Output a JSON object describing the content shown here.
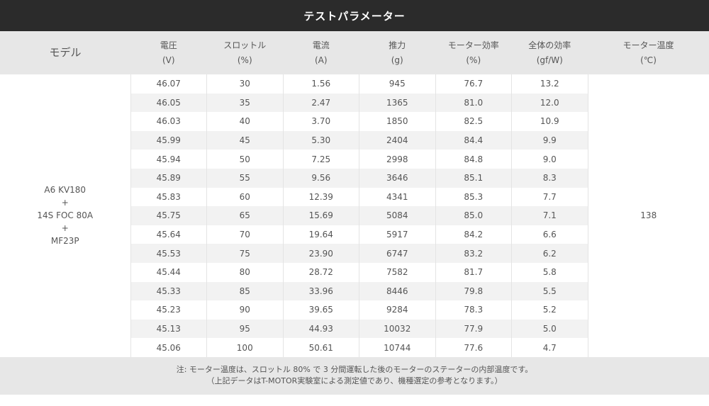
{
  "title": "テストパラメーター",
  "header": {
    "model": "モデル",
    "columns": [
      {
        "name": "電圧",
        "unit": "(V)"
      },
      {
        "name": "スロットル",
        "unit": "(%)"
      },
      {
        "name": "電流",
        "unit": "(A)"
      },
      {
        "name": "推力",
        "unit": "(g)"
      },
      {
        "name": "モーター効率",
        "unit": "(%)"
      },
      {
        "name": "全体の効率",
        "unit": "(gf/W)"
      }
    ],
    "temp_name": "モーター温度",
    "temp_unit": "(℃)"
  },
  "model": {
    "line1": "A6 KV180",
    "plus1": "+",
    "line2": "14S FOC 80A",
    "plus2": "+",
    "line3": "MF23P"
  },
  "temperature": "138",
  "rows": [
    [
      "46.07",
      "30",
      "1.56",
      "945",
      "76.7",
      "13.2"
    ],
    [
      "46.05",
      "35",
      "2.47",
      "1365",
      "81.0",
      "12.0"
    ],
    [
      "46.03",
      "40",
      "3.70",
      "1850",
      "82.5",
      "10.9"
    ],
    [
      "45.99",
      "45",
      "5.30",
      "2404",
      "84.4",
      "9.9"
    ],
    [
      "45.94",
      "50",
      "7.25",
      "2998",
      "84.8",
      "9.0"
    ],
    [
      "45.89",
      "55",
      "9.56",
      "3646",
      "85.1",
      "8.3"
    ],
    [
      "45.83",
      "60",
      "12.39",
      "4341",
      "85.3",
      "7.7"
    ],
    [
      "45.75",
      "65",
      "15.69",
      "5084",
      "85.0",
      "7.1"
    ],
    [
      "45.64",
      "70",
      "19.64",
      "5917",
      "84.2",
      "6.6"
    ],
    [
      "45.53",
      "75",
      "23.90",
      "6747",
      "83.2",
      "6.2"
    ],
    [
      "45.44",
      "80",
      "28.72",
      "7582",
      "81.7",
      "5.8"
    ],
    [
      "45.33",
      "85",
      "33.96",
      "8446",
      "79.8",
      "5.5"
    ],
    [
      "45.23",
      "90",
      "39.65",
      "9284",
      "78.3",
      "5.2"
    ],
    [
      "45.13",
      "95",
      "44.93",
      "10032",
      "77.9",
      "5.0"
    ],
    [
      "45.06",
      "100",
      "50.61",
      "10744",
      "77.6",
      "4.7"
    ]
  ],
  "note": {
    "line1": "注: モーター温度は、スロットル 80% で 3 分間運転した後のモーターのステーターの内部温度です。",
    "line2": "（上記データはT-MOTOR実験室による測定値であり、機種選定の参考となります。）"
  }
}
